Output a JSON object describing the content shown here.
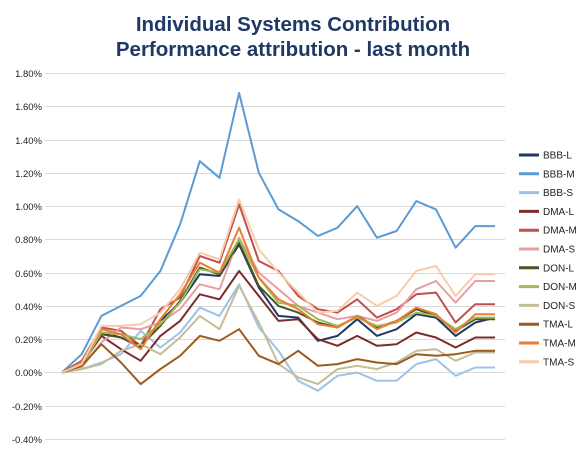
{
  "chart_data": {
    "type": "line",
    "title": [
      "Individual Systems Contribution",
      "Performance attribution - last month"
    ],
    "xlabel": "",
    "ylabel": "",
    "ylim": [
      -0.004,
      0.018
    ],
    "ytick_step": 0.002,
    "ytick_labels": [
      "-0.40%",
      "-0.20%",
      "0.00%",
      "0.20%",
      "0.40%",
      "0.60%",
      "0.80%",
      "1.00%",
      "1.20%",
      "1.40%",
      "1.60%",
      "1.80%"
    ],
    "x_count": 23,
    "grid": true,
    "legend_position": "right",
    "series": [
      {
        "name": "BBB-L",
        "color": "#1f3864",
        "values": [
          0,
          0.0006,
          0.0024,
          0.0021,
          0.0015,
          0.0031,
          0.0042,
          0.0059,
          0.0058,
          0.0077,
          0.0051,
          0.0034,
          0.0033,
          0.0019,
          0.0022,
          0.0032,
          0.0022,
          0.0026,
          0.0035,
          0.0033,
          0.0022,
          0.003,
          0.0033
        ]
      },
      {
        "name": "BBB-M",
        "color": "#5b9bd5",
        "values": [
          0,
          0.0011,
          0.0034,
          0.004,
          0.0046,
          0.0061,
          0.0089,
          0.0127,
          0.0117,
          0.0168,
          0.012,
          0.0098,
          0.0091,
          0.0082,
          0.0087,
          0.01,
          0.0081,
          0.0085,
          0.0103,
          0.0098,
          0.0075,
          0.0088,
          0.0088
        ]
      },
      {
        "name": "BBB-S",
        "color": "#9dc3e6",
        "values": [
          0,
          0.0002,
          0.0006,
          0.0011,
          0.0025,
          0.0015,
          0.0024,
          0.0039,
          0.0034,
          0.0053,
          0.0027,
          0.0013,
          -0.0005,
          -0.0011,
          -0.0002,
          0.0,
          -0.0005,
          -0.0005,
          0.0005,
          0.0008,
          -0.0002,
          0.0003,
          0.0003
        ]
      },
      {
        "name": "DMA-L",
        "color": "#7b2c2c",
        "values": [
          0,
          0.0005,
          0.0022,
          0.0014,
          0.0007,
          0.0022,
          0.0031,
          0.0047,
          0.0044,
          0.0061,
          0.0046,
          0.0031,
          0.0032,
          0.002,
          0.0016,
          0.0022,
          0.0016,
          0.0017,
          0.0024,
          0.0021,
          0.0015,
          0.0021,
          0.0021
        ]
      },
      {
        "name": "DMA-M",
        "color": "#c0504d",
        "values": [
          0,
          0.0007,
          0.0027,
          0.0025,
          0.0016,
          0.0038,
          0.0045,
          0.007,
          0.0066,
          0.0101,
          0.0067,
          0.0061,
          0.0046,
          0.0038,
          0.0036,
          0.0044,
          0.0033,
          0.0038,
          0.0047,
          0.0048,
          0.003,
          0.0041,
          0.0041
        ]
      },
      {
        "name": "DMA-S",
        "color": "#e6a0a0",
        "values": [
          0,
          0.0003,
          0.0018,
          0.0027,
          0.0026,
          0.003,
          0.0038,
          0.0053,
          0.005,
          0.0081,
          0.006,
          0.005,
          0.004,
          0.0036,
          0.0032,
          0.0034,
          0.0031,
          0.0036,
          0.005,
          0.0055,
          0.0042,
          0.0055,
          0.0055
        ]
      },
      {
        "name": "DON-L",
        "color": "#4a5226",
        "values": [
          0,
          0.0006,
          0.0023,
          0.0021,
          0.0016,
          0.0028,
          0.0043,
          0.0063,
          0.0059,
          0.0078,
          0.0052,
          0.004,
          0.0036,
          0.003,
          0.0027,
          0.0034,
          0.0027,
          0.0031,
          0.0038,
          0.0034,
          0.0025,
          0.0032,
          0.0032
        ]
      },
      {
        "name": "DON-M",
        "color": "#9bbb59",
        "values": [
          0,
          0.0004,
          0.0024,
          0.0023,
          0.002,
          0.0029,
          0.0042,
          0.0062,
          0.006,
          0.008,
          0.0057,
          0.0042,
          0.004,
          0.0032,
          0.0028,
          0.0033,
          0.0028,
          0.003,
          0.0036,
          0.0034,
          0.0026,
          0.0033,
          0.0033
        ]
      },
      {
        "name": "DON-S",
        "color": "#c4bd97",
        "values": [
          0,
          0.0002,
          0.0005,
          0.0013,
          0.0017,
          0.0011,
          0.0021,
          0.0034,
          0.0026,
          0.0052,
          0.003,
          0.0005,
          -0.0003,
          -0.0007,
          0.0002,
          0.0004,
          0.0002,
          0.0006,
          0.0013,
          0.0014,
          0.0007,
          0.0012,
          0.0012
        ]
      },
      {
        "name": "TMA-L",
        "color": "#9c5a1c",
        "values": [
          0,
          0.0004,
          0.0017,
          0.0006,
          -0.0007,
          0.0002,
          0.001,
          0.0022,
          0.0019,
          0.0026,
          0.001,
          0.0005,
          0.0013,
          0.0004,
          0.0005,
          0.0008,
          0.0006,
          0.0005,
          0.0011,
          0.001,
          0.0011,
          0.0013,
          0.0013
        ]
      },
      {
        "name": "TMA-M",
        "color": "#ed7d31",
        "values": [
          0,
          0.0006,
          0.0026,
          0.0023,
          0.0014,
          0.0032,
          0.0047,
          0.0066,
          0.006,
          0.0087,
          0.0057,
          0.0044,
          0.0038,
          0.0029,
          0.0027,
          0.0034,
          0.0026,
          0.0031,
          0.0039,
          0.0035,
          0.0024,
          0.0035,
          0.0035
        ]
      },
      {
        "name": "TMA-S",
        "color": "#f8cbad",
        "values": [
          0,
          0.0005,
          0.0028,
          0.0028,
          0.0029,
          0.0036,
          0.005,
          0.0072,
          0.0068,
          0.0104,
          0.0074,
          0.006,
          0.0048,
          0.0036,
          0.0037,
          0.0048,
          0.004,
          0.0046,
          0.0061,
          0.0064,
          0.0046,
          0.0059,
          0.0059
        ]
      }
    ]
  }
}
